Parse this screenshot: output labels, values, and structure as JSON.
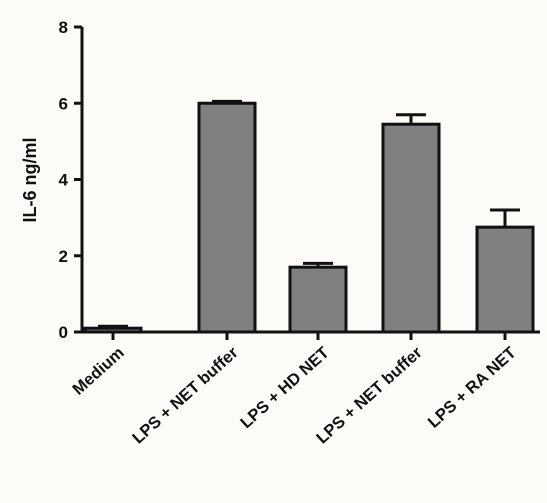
{
  "chart_data": {
    "type": "bar",
    "categories": [
      "Medium",
      "LPS + NET buffer",
      "LPS + HD NET",
      "LPS + NET buffer",
      "LPS + RA NET"
    ],
    "values": [
      0.1,
      6.0,
      1.7,
      5.45,
      2.75
    ],
    "error": [
      0.05,
      0.05,
      0.1,
      0.25,
      0.45
    ],
    "ylabel": "IL-6 ng/ml",
    "ylim": [
      0,
      8
    ],
    "yticks": [
      0,
      2,
      4,
      6,
      8
    ],
    "bar_color": "#808080",
    "edge_color": "#111111",
    "grid": false
  }
}
